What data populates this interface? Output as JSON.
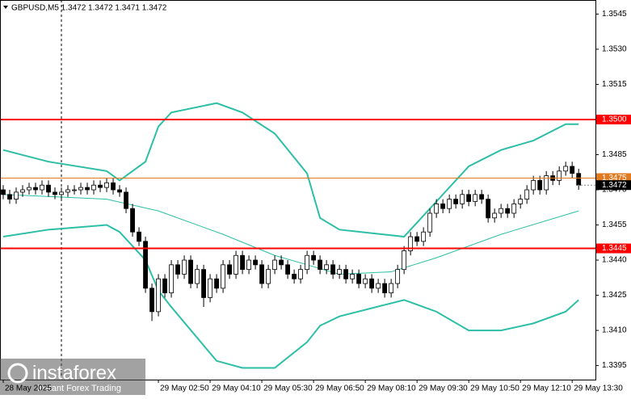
{
  "chart_data": {
    "type": "candlestick",
    "title": "GBPUSD,M5  1.3472 1.3472 1.3471 1.3472",
    "ylim": [
      1.3389,
      1.3551
    ],
    "xlim": [
      -0.5,
      91.6
    ],
    "yticks": [
      {
        "value": 1.3545,
        "label": "1.3545"
      },
      {
        "value": 1.353,
        "label": "1.3530"
      },
      {
        "value": 1.3515,
        "label": "1.3515"
      },
      {
        "value": 1.3485,
        "label": "1.3485"
      },
      {
        "value": 1.347,
        "label": "1.3470"
      },
      {
        "value": 1.3455,
        "label": "1.3455"
      },
      {
        "value": 1.344,
        "label": "1.3440"
      },
      {
        "value": 1.3425,
        "label": "1.3425"
      },
      {
        "value": 1.341,
        "label": "1.3410"
      },
      {
        "value": 1.3395,
        "label": "1.3395"
      }
    ],
    "xticks": [
      {
        "value": 0,
        "label": "28 May 2025"
      },
      {
        "value": 24,
        "label": "29 May 02:50"
      },
      {
        "value": 32,
        "label": "29 May 04:10"
      },
      {
        "value": 40,
        "label": "29 May 05:30"
      },
      {
        "value": 48,
        "label": "29 May 06:50"
      },
      {
        "value": 56,
        "label": "29 May 08:10"
      },
      {
        "value": 64,
        "label": "29 May 09:30"
      },
      {
        "value": 72,
        "label": "29 May 10:50"
      },
      {
        "value": 80,
        "label": "29 May 12:10"
      },
      {
        "value": 88,
        "label": "29 May 13:30"
      }
    ],
    "open": [
      1.347,
      1.3468,
      1.3466,
      1.3469,
      1.347,
      1.3471,
      1.347,
      1.3472,
      1.3469,
      1.3468,
      1.3469,
      1.347,
      1.347,
      1.3471,
      1.347,
      1.3472,
      1.3471,
      1.3473,
      1.347,
      1.3469,
      1.3462,
      1.3452,
      1.3448,
      1.3428,
      1.3418,
      1.3432,
      1.3426,
      1.3438,
      1.3434,
      1.344,
      1.343,
      1.3436,
      1.3424,
      1.3432,
      1.3428,
      1.3438,
      1.3434,
      1.3442,
      1.3436,
      1.344,
      1.3438,
      1.343,
      1.3436,
      1.344,
      1.3438,
      1.3434,
      1.3432,
      1.3436,
      1.3442,
      1.344,
      1.3436,
      1.3438,
      1.3434,
      1.3436,
      1.3432,
      1.3434,
      1.343,
      1.3432,
      1.3428,
      1.343,
      1.3426,
      1.343,
      1.3436,
      1.3444,
      1.345,
      1.3448,
      1.3452,
      1.346,
      1.3464,
      1.3462,
      1.3466,
      1.3464,
      1.3468,
      1.3465,
      1.3468,
      1.3466,
      1.3458,
      1.346,
      1.3462,
      1.346,
      1.3464,
      1.3466,
      1.347,
      1.3474,
      1.347,
      1.3476,
      1.3474,
      1.3478,
      1.348,
      1.3477
    ],
    "high": [
      1.3472,
      1.347,
      1.3471,
      1.3472,
      1.3473,
      1.3473,
      1.3474,
      1.3474,
      1.3471,
      1.3471,
      1.3472,
      1.3472,
      1.3473,
      1.3473,
      1.3474,
      1.3474,
      1.3475,
      1.3475,
      1.3472,
      1.3471,
      1.3464,
      1.3454,
      1.345,
      1.343,
      1.3434,
      1.3434,
      1.344,
      1.344,
      1.3442,
      1.3442,
      1.3438,
      1.3438,
      1.3434,
      1.3434,
      1.344,
      1.344,
      1.3444,
      1.3444,
      1.3442,
      1.3442,
      1.344,
      1.3438,
      1.3442,
      1.3442,
      1.344,
      1.3436,
      1.3438,
      1.3444,
      1.3444,
      1.3442,
      1.344,
      1.344,
      1.3438,
      1.3438,
      1.3436,
      1.3436,
      1.3434,
      1.3434,
      1.3432,
      1.3432,
      1.3432,
      1.3438,
      1.3446,
      1.3452,
      1.3452,
      1.3454,
      1.3462,
      1.3466,
      1.3466,
      1.3468,
      1.3468,
      1.347,
      1.347,
      1.347,
      1.347,
      1.3468,
      1.3462,
      1.3464,
      1.3464,
      1.3466,
      1.3468,
      1.3472,
      1.3476,
      1.3476,
      1.3478,
      1.3478,
      1.348,
      1.3482,
      1.3482,
      1.3479
    ],
    "low": [
      1.3466,
      1.3464,
      1.3464,
      1.3467,
      1.3468,
      1.3468,
      1.3468,
      1.3467,
      1.3466,
      1.3466,
      1.3467,
      1.3468,
      1.3468,
      1.3468,
      1.3468,
      1.3469,
      1.3469,
      1.3468,
      1.3467,
      1.346,
      1.345,
      1.3446,
      1.3426,
      1.3414,
      1.3416,
      1.3424,
      1.3424,
      1.3432,
      1.3432,
      1.3428,
      1.3428,
      1.342,
      1.3422,
      1.3426,
      1.3426,
      1.3432,
      1.3432,
      1.3434,
      1.3434,
      1.3436,
      1.3428,
      1.3428,
      1.3434,
      1.3436,
      1.3432,
      1.343,
      1.343,
      1.3434,
      1.3438,
      1.3434,
      1.3434,
      1.3432,
      1.3432,
      1.343,
      1.343,
      1.3428,
      1.3428,
      1.3426,
      1.3426,
      1.3424,
      1.3424,
      1.3428,
      1.3434,
      1.3442,
      1.3446,
      1.3446,
      1.345,
      1.3458,
      1.346,
      1.346,
      1.3462,
      1.3462,
      1.3463,
      1.3463,
      1.3464,
      1.3456,
      1.3456,
      1.3458,
      1.3458,
      1.3458,
      1.3462,
      1.3464,
      1.3468,
      1.3468,
      1.3468,
      1.3472,
      1.3472,
      1.3476,
      1.3475,
      1.347
    ],
    "close": [
      1.3468,
      1.3466,
      1.3469,
      1.347,
      1.3471,
      1.347,
      1.3472,
      1.3469,
      1.3468,
      1.3469,
      1.347,
      1.347,
      1.3471,
      1.347,
      1.3472,
      1.3471,
      1.3473,
      1.347,
      1.3469,
      1.3462,
      1.3452,
      1.3448,
      1.3428,
      1.3418,
      1.3432,
      1.3426,
      1.3438,
      1.3434,
      1.344,
      1.343,
      1.3436,
      1.3424,
      1.3432,
      1.3428,
      1.3438,
      1.3434,
      1.3442,
      1.3436,
      1.344,
      1.3438,
      1.343,
      1.3436,
      1.344,
      1.3438,
      1.3434,
      1.3432,
      1.3436,
      1.3442,
      1.344,
      1.3436,
      1.3438,
      1.3434,
      1.3436,
      1.3432,
      1.3434,
      1.343,
      1.3432,
      1.3428,
      1.343,
      1.3426,
      1.343,
      1.3436,
      1.3444,
      1.345,
      1.3448,
      1.3452,
      1.346,
      1.3464,
      1.3462,
      1.3466,
      1.3464,
      1.3468,
      1.3465,
      1.3468,
      1.3466,
      1.3458,
      1.346,
      1.3462,
      1.346,
      1.3464,
      1.3466,
      1.347,
      1.3474,
      1.347,
      1.3476,
      1.3474,
      1.3478,
      1.348,
      1.3477,
      1.3472
    ],
    "lines": [
      {
        "color": "#2cbfa6",
        "width": 2,
        "x": [
          0,
          7,
          16,
          18,
          22,
          24,
          26,
          33,
          37,
          42,
          47,
          49,
          52,
          62,
          67,
          72,
          77,
          82,
          87,
          89
        ],
        "values": [
          1.3487,
          1.3482,
          1.3478,
          1.3474,
          1.3482,
          1.3497,
          1.3503,
          1.3507,
          1.3503,
          1.3494,
          1.3477,
          1.3458,
          1.3453,
          1.345,
          1.3465,
          1.348,
          1.3487,
          1.3491,
          1.3498,
          1.3498
        ]
      },
      {
        "color": "#2cbfa6",
        "width": 2,
        "x": [
          0,
          7,
          16,
          18,
          22,
          24,
          26,
          33,
          37,
          42,
          47,
          49,
          52,
          62,
          67,
          72,
          77,
          82,
          87,
          89
        ],
        "values": [
          1.345,
          1.3453,
          1.3455,
          1.3452,
          1.344,
          1.3427,
          1.342,
          1.3397,
          1.3394,
          1.3394,
          1.3405,
          1.3412,
          1.3416,
          1.3423,
          1.3418,
          1.341,
          1.341,
          1.3413,
          1.3418,
          1.3423
        ]
      },
      {
        "color": "#2cbfa6",
        "width": 1,
        "x": [
          0,
          16,
          24,
          34,
          42,
          52,
          60,
          67,
          77,
          89
        ],
        "values": [
          1.3468,
          1.3466,
          1.3461,
          1.3451,
          1.3442,
          1.3434,
          1.3435,
          1.3441,
          1.3451,
          1.3461
        ]
      }
    ],
    "levels": [
      {
        "value": 1.35,
        "label": "1.3500",
        "color": "#ff0000",
        "width": 2
      },
      {
        "value": 1.3445,
        "label": "1.3445",
        "color": "#ff0000",
        "width": 2
      },
      {
        "value": 1.3475,
        "label": "1.3475",
        "color": "#e07a20",
        "width": 1
      }
    ],
    "current": {
      "value": 1.3472,
      "label": "1.3472"
    },
    "watermark": {
      "brand": "instaforex",
      "tagline": "Instant Forex Trading"
    }
  }
}
